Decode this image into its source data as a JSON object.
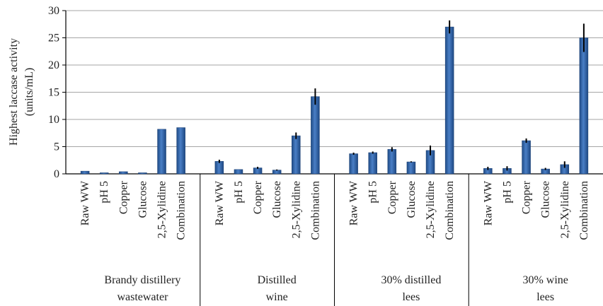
{
  "chart_data": {
    "type": "bar",
    "ylabel_lines": [
      "Highest laccase activity",
      "(units/mL)"
    ],
    "ylim": [
      0,
      30
    ],
    "yticks": [
      0,
      5,
      10,
      15,
      20,
      25,
      30
    ],
    "grid": true,
    "bar_color": "#2e62a8",
    "groups": [
      {
        "name_lines": [
          "Brandy distillery",
          "wastewater"
        ],
        "categories": [
          "Raw WW",
          "pH 5",
          "Copper",
          "Glucose",
          "2,5-Xylidine",
          "Combination"
        ],
        "values": [
          0.5,
          0.2,
          0.4,
          0.2,
          8.2,
          8.5
        ],
        "errors": [
          0,
          0,
          0,
          0,
          0,
          0
        ]
      },
      {
        "name_lines": [
          "Distilled",
          "wine"
        ],
        "categories": [
          "Raw WW",
          "pH 5",
          "Copper",
          "Glucose",
          "2,5-Xylidine",
          "Combination"
        ],
        "values": [
          2.3,
          0.8,
          1.1,
          0.7,
          7.0,
          14.2
        ],
        "errors": [
          0.3,
          0,
          0.2,
          0.1,
          0.6,
          1.5
        ]
      },
      {
        "name_lines": [
          "30% distilled",
          "lees"
        ],
        "categories": [
          "Raw WW",
          "pH 5",
          "Copper",
          "Glucose",
          "2,5-Xylidine",
          "Combination"
        ],
        "values": [
          3.7,
          3.9,
          4.5,
          2.2,
          4.3,
          27.0
        ],
        "errors": [
          0.2,
          0.2,
          0.4,
          0.1,
          0.9,
          1.2
        ]
      },
      {
        "name_lines": [
          "30% wine",
          "lees"
        ],
        "categories": [
          "Raw WW",
          "pH 5",
          "Copper",
          "Glucose",
          "2,5-Xylidine",
          "Combination"
        ],
        "values": [
          1.0,
          1.0,
          6.1,
          0.9,
          1.7,
          25.0
        ],
        "errors": [
          0.3,
          0.4,
          0.4,
          0.2,
          0.6,
          2.6
        ]
      }
    ]
  }
}
